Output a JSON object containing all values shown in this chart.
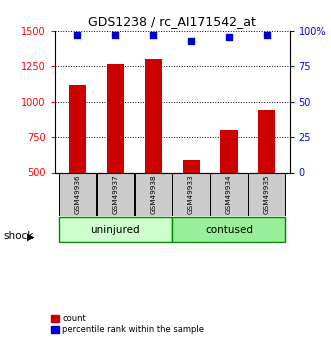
{
  "title": "GDS1238 / rc_AI171542_at",
  "samples": [
    "GSM49936",
    "GSM49937",
    "GSM49938",
    "GSM49933",
    "GSM49934",
    "GSM49935"
  ],
  "counts": [
    1120,
    1270,
    1300,
    590,
    800,
    940
  ],
  "percentile_ranks": [
    97,
    97,
    97,
    93,
    96,
    97
  ],
  "bar_color": "#cc0000",
  "dot_color": "#0000cc",
  "ylim_left": [
    500,
    1500
  ],
  "ylim_right": [
    0,
    100
  ],
  "yticks_left": [
    500,
    750,
    1000,
    1250,
    1500
  ],
  "yticks_right": [
    0,
    25,
    50,
    75,
    100
  ],
  "ytick_right_labels": [
    "0",
    "25",
    "50",
    "75",
    "100%"
  ],
  "group1_label": "uninjured",
  "group2_label": "contused",
  "group1_color": "#ccffcc",
  "group2_color": "#99ee99",
  "group_border_color": "#008800",
  "label_bg_color": "#cccccc",
  "factor_label": "shock",
  "legend_count": "count",
  "legend_pct": "percentile rank within the sample",
  "title_fontsize": 9,
  "bar_bottom": 500,
  "bar_width": 0.45
}
